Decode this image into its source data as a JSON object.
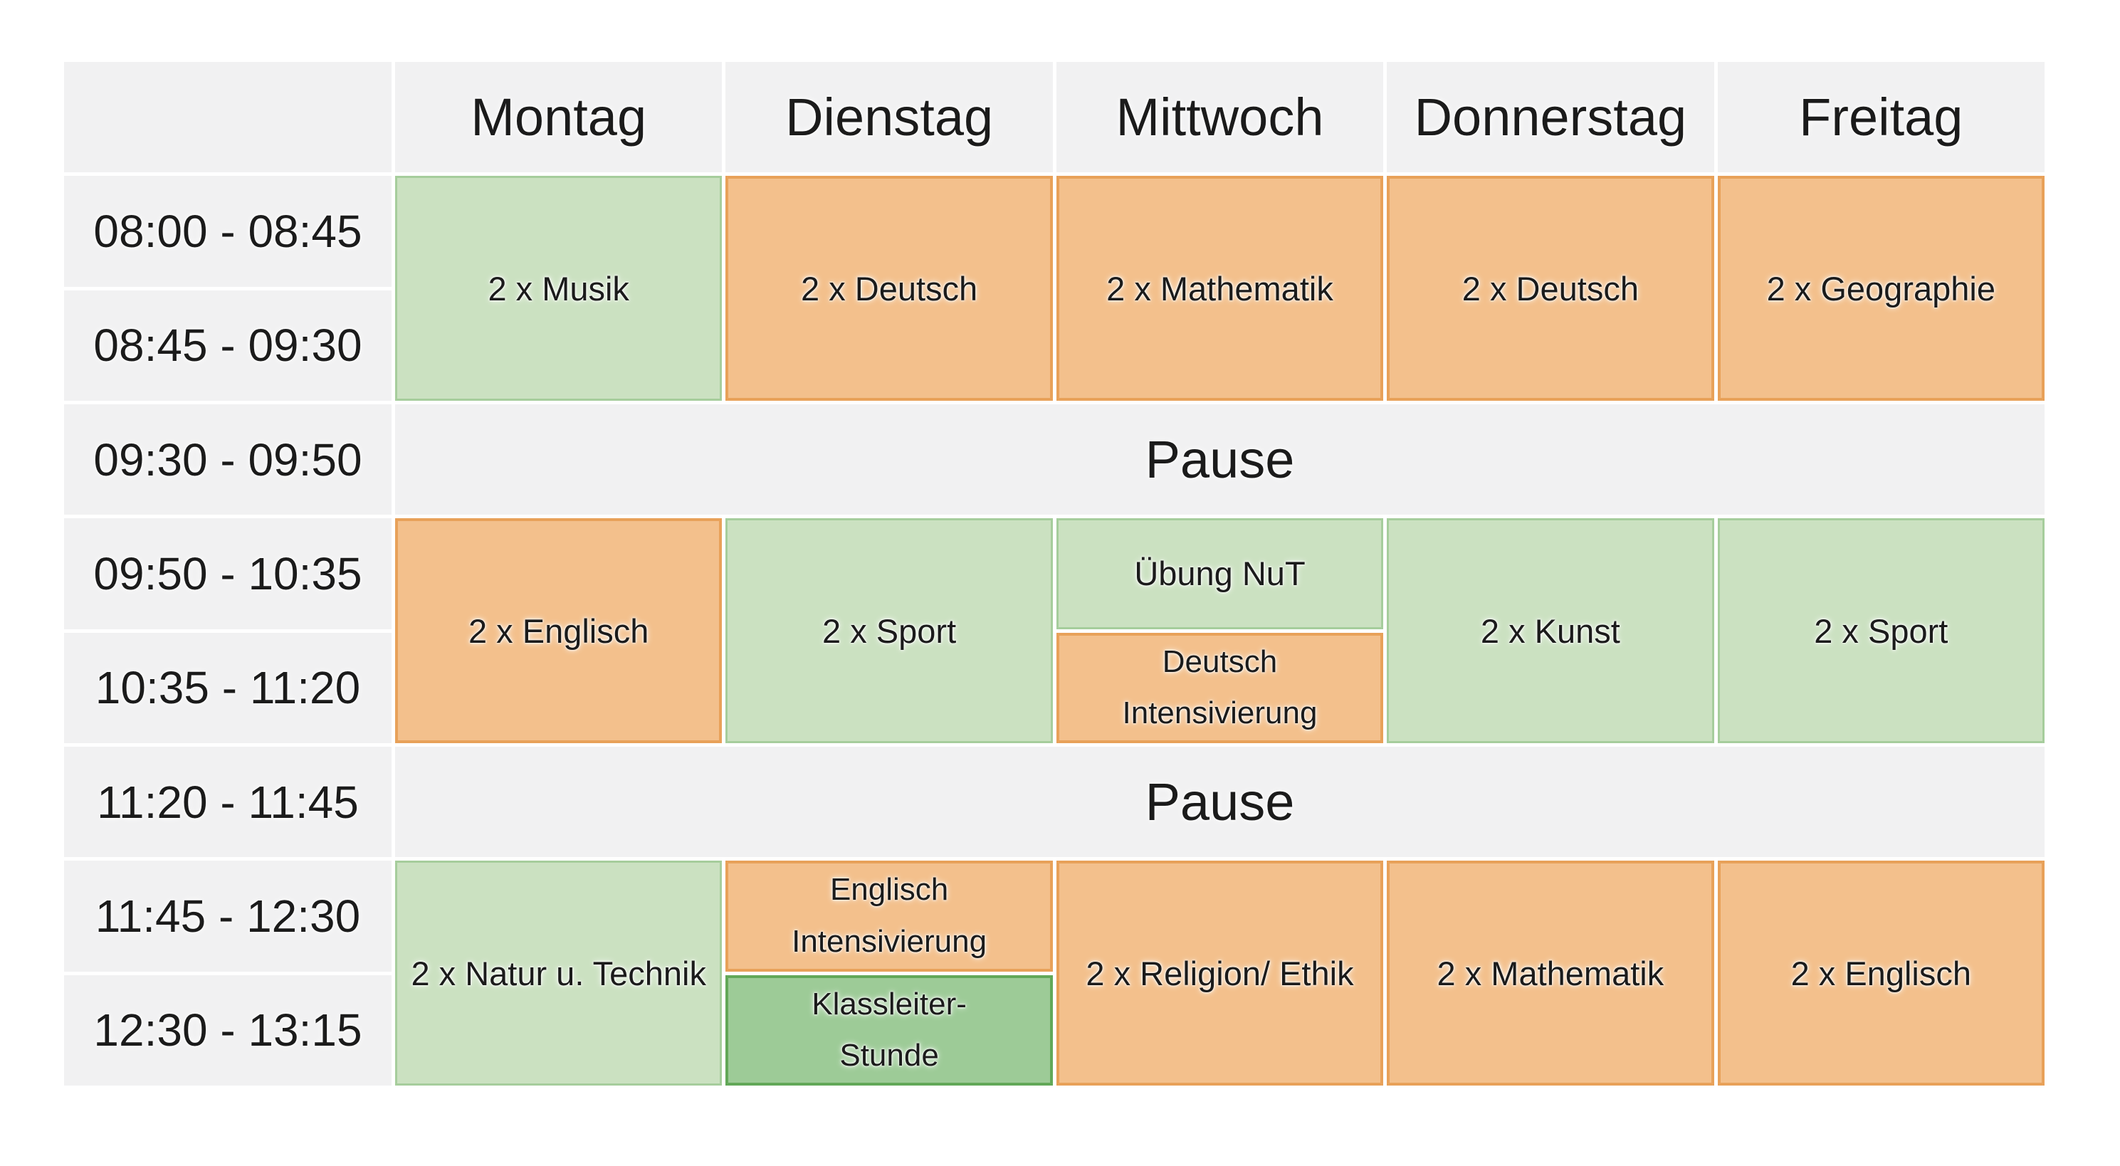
{
  "timetable": {
    "header": {
      "days": {
        "mon": "Montag",
        "tue": "Dienstag",
        "wed": "Mittwoch",
        "thu": "Donnerstag",
        "fri": "Freitag"
      }
    },
    "times": {
      "t1": "08:00 - 08:45",
      "t2": "08:45 - 09:30",
      "t3": "09:30 - 09:50",
      "t4": "09:50 - 10:35",
      "t5": "10:35 - 11:20",
      "t6": "11:20 - 11:45",
      "t7": "11:45 - 12:30",
      "t8": "12:30 - 13:15"
    },
    "pause1": "Pause",
    "pause2": "Pause",
    "cells": {
      "mon_early": "2 x Musik",
      "tue_early": "2 x Deutsch",
      "wed_early": "2 x Mathematik",
      "thu_early": "2 x Deutsch",
      "fri_early": "2 x Geographie",
      "mon_mid": "2 x Englisch",
      "tue_mid": "2 x Sport",
      "wed_mid_a": "Übung NuT",
      "wed_mid_b": "Deutsch Intensivierung",
      "thu_mid": "2 x Kunst",
      "fri_mid": "2 x Sport",
      "mon_late": "2 x Natur u. Technik",
      "tue_late_a": "Englisch Intensivierung",
      "tue_late_b": "Klassleiter-Stunde",
      "wed_late": "2 x Religion/ Ethik",
      "thu_late": "2 x Mathematik",
      "fri_late": "2 x Englisch"
    },
    "colors": {
      "grid_gray": "#f1f1f2",
      "slot_green": "#cbe1c1",
      "slot_green_border": "#a6cd9c",
      "slot_orange": "#f3c08c",
      "slot_orange_border": "#e8a159",
      "slot_dark_green": "#9dcb97",
      "slot_dark_green_border": "#62a858"
    }
  }
}
